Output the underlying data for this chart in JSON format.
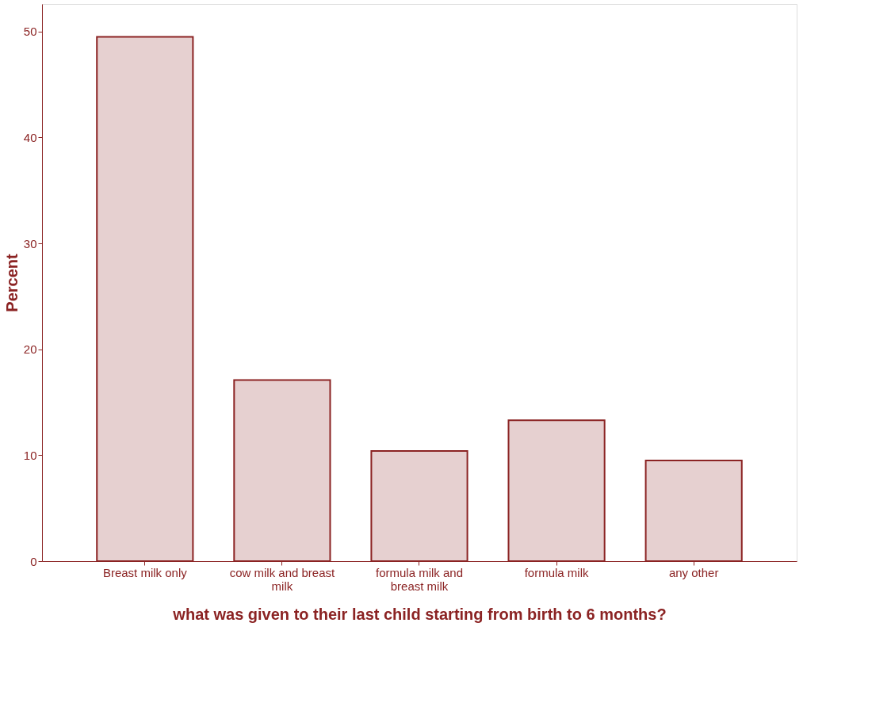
{
  "chart_data": {
    "type": "bar",
    "xlabel": "what was given to their last child starting from birth to 6 months?",
    "ylabel": "Percent",
    "categories": [
      "Breast milk only",
      "cow milk and breast milk",
      "formula milk and breast milk",
      "formula milk",
      "any other"
    ],
    "values": [
      49.5,
      17.1,
      10.4,
      13.3,
      9.5
    ],
    "color": "#e6d0d0",
    "ylim": [
      0,
      52.6
    ],
    "yticks": [
      0,
      10,
      20,
      30,
      40,
      50
    ],
    "grid": false
  }
}
